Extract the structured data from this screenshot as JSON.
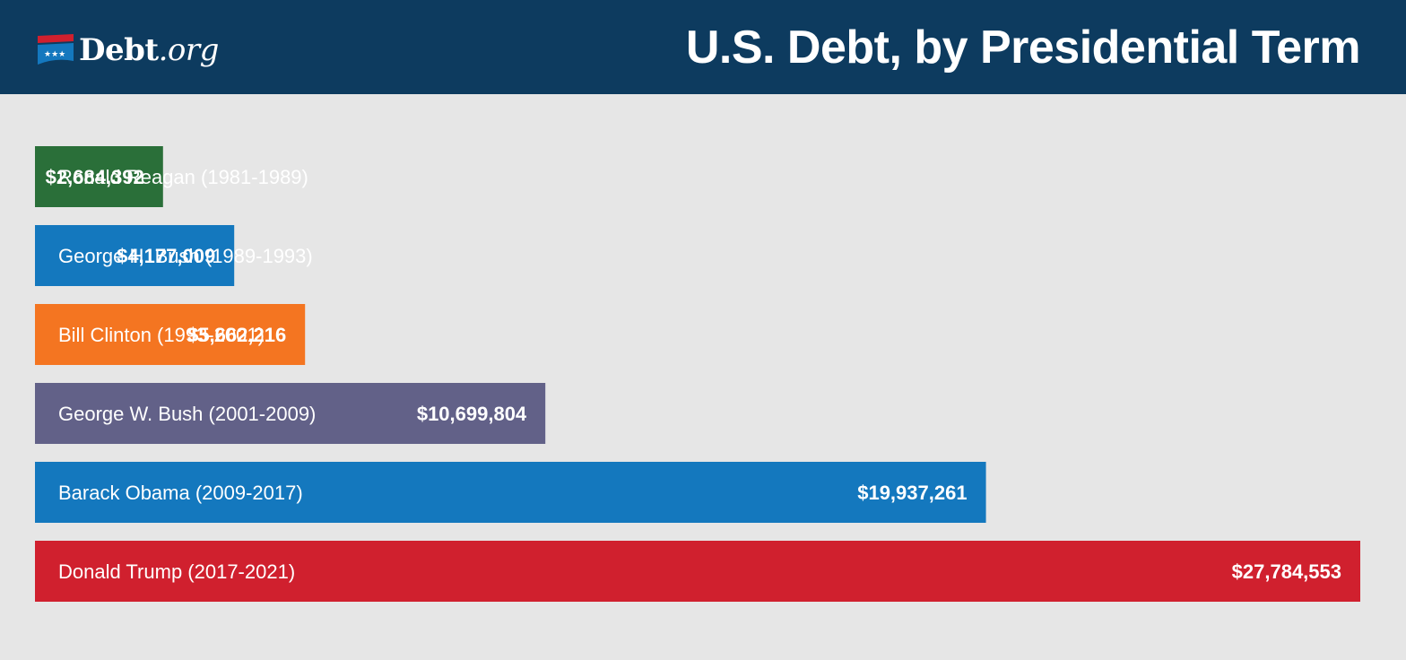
{
  "header": {
    "logo_text": "Debt",
    "logo_suffix": ".org",
    "title": "U.S. Debt, by Presidential Term"
  },
  "colors": {
    "header_bg": "#0d3b5f",
    "page_bg": "#e6e6e6"
  },
  "chart_data": {
    "type": "bar",
    "orientation": "horizontal",
    "title": "U.S. Debt, by Presidential Term",
    "categories": [
      "Ronald Reagan (1981-1989)",
      "George H. Bush (1989-1993)",
      "Bill Clinton (1993-2001)",
      "George W. Bush (2001-2009)",
      "Barack Obama (2009-2017)",
      "Donald Trump (2017-2021)"
    ],
    "values": [
      2684392,
      4177009,
      5662216,
      10699804,
      19937261,
      27784553
    ],
    "value_labels": [
      "$2,684,392",
      "$4,177,009",
      "$5,662,216",
      "$10,699,804",
      "$19,937,261",
      "$27,784,553"
    ],
    "bar_colors": [
      "#2a6f39",
      "#1478be",
      "#f47521",
      "#626188",
      "#1478be",
      "#d0202e"
    ],
    "grid": false,
    "legend": "none"
  }
}
